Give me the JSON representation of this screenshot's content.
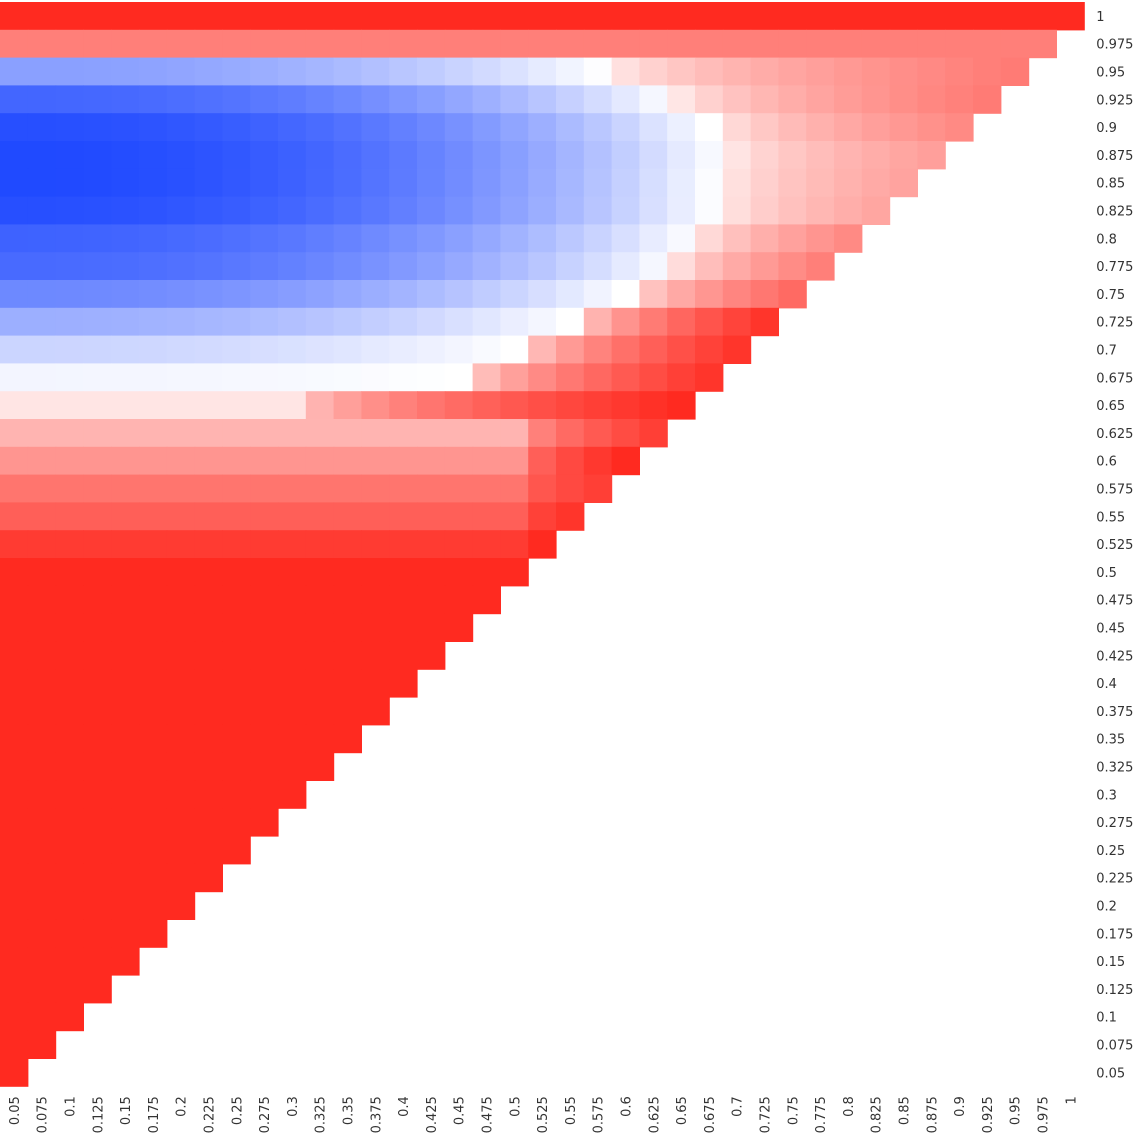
{
  "chart_data": {
    "type": "heatmap",
    "title": "",
    "xlabel": "",
    "ylabel": "",
    "legend": "none",
    "grid": false,
    "x_categories": [
      "0.05",
      "0.075",
      "0.1",
      "0.125",
      "0.15",
      "0.175",
      "0.2",
      "0.225",
      "0.25",
      "0.275",
      "0.3",
      "0.325",
      "0.35",
      "0.375",
      "0.4",
      "0.425",
      "0.45",
      "0.475",
      "0.5",
      "0.525",
      "0.55",
      "0.575",
      "0.6",
      "0.625",
      "0.65",
      "0.675",
      "0.7",
      "0.725",
      "0.75",
      "0.775",
      "0.8",
      "0.825",
      "0.85",
      "0.875",
      "0.9",
      "0.925",
      "0.95",
      "0.975",
      "1"
    ],
    "y_categories": [
      "0.05",
      "0.075",
      "0.1",
      "0.125",
      "0.15",
      "0.175",
      "0.2",
      "0.225",
      "0.25",
      "0.275",
      "0.3",
      "0.325",
      "0.35",
      "0.375",
      "0.4",
      "0.425",
      "0.45",
      "0.475",
      "0.5",
      "0.525",
      "0.55",
      "0.575",
      "0.6",
      "0.625",
      "0.65",
      "0.675",
      "0.7",
      "0.725",
      "0.75",
      "0.775",
      "0.8",
      "0.825",
      "0.85",
      "0.875",
      "0.9",
      "0.925",
      "0.95",
      "0.975",
      "1"
    ],
    "mask": "cell shown only where x <= y (lower-left triangle)",
    "value_scale": {
      "min": -1,
      "max": 1,
      "note": "approximate relative color intensity: -1 deep blue, 0 white, 1 red"
    },
    "colors": {
      "low": "#1440ff",
      "mid": "#ffffff",
      "high": "#ff2a20"
    },
    "profile": {
      "y_from_top": [
        "1",
        "0.975",
        "0.95",
        "0.925",
        "0.9",
        "0.875",
        "0.85",
        "0.825",
        "0.8",
        "0.775",
        "0.75",
        "0.725",
        "0.7",
        "0.675",
        "0.65",
        "0.625",
        "0.6",
        "0.575",
        "0.55",
        "0.525"
      ],
      "left_values": [
        1.0,
        0.6,
        -0.5,
        -0.8,
        -0.92,
        -0.95,
        -0.95,
        -0.92,
        -0.82,
        -0.78,
        -0.62,
        -0.42,
        -0.22,
        -0.05,
        0.12,
        0.35,
        0.5,
        0.65,
        0.75,
        0.92
      ],
      "zero_cross_x": [
        null,
        0.975,
        0.58,
        0.64,
        0.675,
        0.685,
        0.68,
        0.68,
        0.66,
        0.64,
        0.6,
        0.55,
        0.5,
        0.45,
        0.3,
        0.5,
        0.5,
        0.5,
        0.5,
        0.5
      ],
      "right_values": [
        1.0,
        1.0,
        0.62,
        0.62,
        0.55,
        0.45,
        0.43,
        0.42,
        0.55,
        0.6,
        0.7,
        0.95,
        0.95,
        0.95,
        1.0,
        0.9,
        1.0,
        0.9,
        0.95,
        1.0
      ],
      "below_rows": "all remaining rows (0.5 and lower) ≈ 1.0 (solid red)"
    }
  }
}
